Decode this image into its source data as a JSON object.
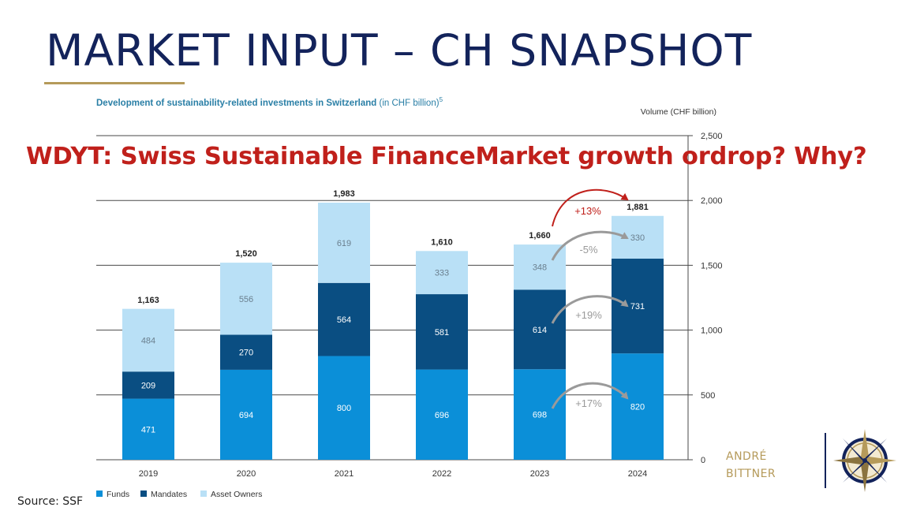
{
  "slide": {
    "title": "MARKET INPUT – CH SNAPSHOT",
    "overlay_question": "WDYT: Swiss Sustainable FinanceMarket growth ordrop? Why?",
    "source": "Source: SSF",
    "logo_line1": "ANDRÉ",
    "logo_line2": "BITTNER"
  },
  "chart_data": {
    "type": "bar",
    "stacked": true,
    "title_bold": "Development of sustainability-related investments in Switzerland",
    "title_rest": " (in CHF billion)",
    "title_footnote": "5",
    "ylabel": "Volume (CHF billion)",
    "categories": [
      "2019",
      "2020",
      "2021",
      "2022",
      "2023",
      "2024"
    ],
    "series": [
      {
        "name": "Funds",
        "color": "#0b8fd8",
        "label_color": "#ffffff",
        "values": [
          471,
          694,
          800,
          696,
          698,
          820
        ]
      },
      {
        "name": "Mandates",
        "color": "#0a4e82",
        "label_color": "#ffffff",
        "values": [
          209,
          270,
          564,
          581,
          614,
          731
        ]
      },
      {
        "name": "Asset Owners",
        "color": "#b9e0f6",
        "label_color": "#6a7f8e",
        "values": [
          484,
          556,
          619,
          333,
          348,
          330
        ]
      }
    ],
    "totals": [
      1163,
      1520,
      1983,
      1610,
      1660,
      1881
    ],
    "total_labels": [
      "1,163",
      "1,520",
      "1,983",
      "1,610",
      "1,660",
      "1,881"
    ],
    "ylim": [
      0,
      2500
    ],
    "yticks": [
      0,
      500,
      1000,
      1500,
      2000,
      2500
    ],
    "ytick_labels": [
      "0",
      "500",
      "1,000",
      "1,500",
      "2,000",
      "2,500"
    ],
    "grid": true,
    "legend_position": "bottom-left",
    "annotations": [
      {
        "label": "+13%",
        "series": "total",
        "color": "#c0201b"
      },
      {
        "label": "-5%",
        "series": "Asset Owners",
        "color": "#9a9a9a"
      },
      {
        "label": "+19%",
        "series": "Mandates",
        "color": "#9a9a9a"
      },
      {
        "label": "+17%",
        "series": "Funds",
        "color": "#9a9a9a"
      }
    ]
  }
}
